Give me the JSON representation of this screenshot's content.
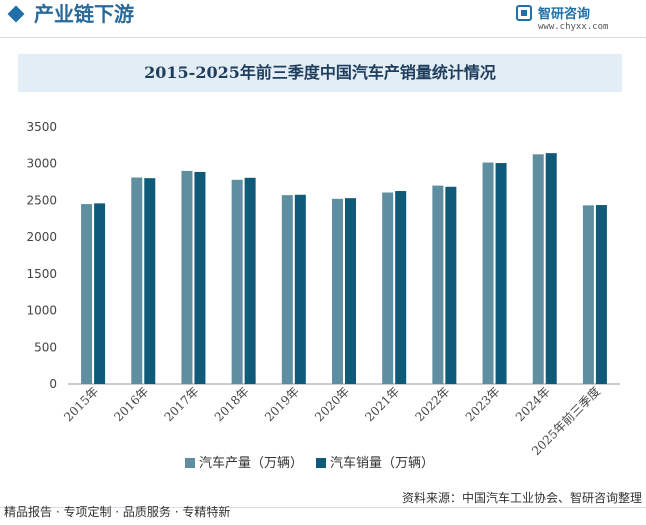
{
  "header": {
    "section_title": "产业链下游",
    "logo_name": "智研咨询",
    "logo_url": "www.chyxx.com"
  },
  "chart_data": {
    "type": "bar",
    "title": "2015-2025年前三季度中国汽车产销量统计情况",
    "categories": [
      "2015年",
      "2016年",
      "2017年",
      "2018年",
      "2019年",
      "2020年",
      "2021年",
      "2022年",
      "2023年",
      "2024年",
      "2025年前三季度"
    ],
    "series": [
      {
        "name": "汽车产量（万辆）",
        "color": "#5f8ea0",
        "values": [
          2450,
          2812,
          2902,
          2781,
          2572,
          2522,
          2608,
          2702,
          3016,
          3128,
          2433
        ]
      },
      {
        "name": "汽车销量（万辆）",
        "color": "#0e5a78",
        "values": [
          2460,
          2803,
          2888,
          2808,
          2577,
          2531,
          2628,
          2686,
          3009,
          3144,
          2437
        ]
      }
    ],
    "yticks": [
      "0",
      "500",
      "1000",
      "1500",
      "2000",
      "2500",
      "3000",
      "3500"
    ],
    "ylim": [
      0,
      3500
    ],
    "legend_position": "bottom",
    "xlabel": "",
    "ylabel": ""
  },
  "footer": {
    "services": "精品报告 · 专项定制 · 品质服务 · 专精特新",
    "source": "资料来源：中国汽车工业协会、智研咨询整理"
  }
}
